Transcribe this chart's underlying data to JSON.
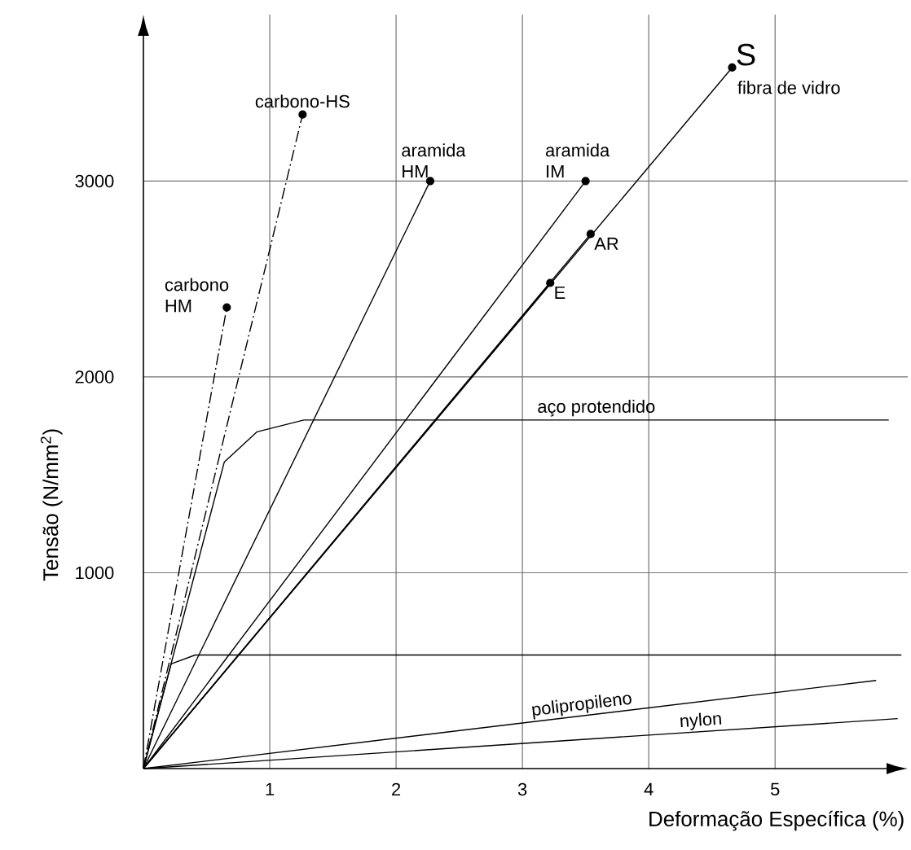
{
  "chart_data": {
    "type": "line",
    "xlabel": "Deformação Específica (%)",
    "ylabel": "Tensão (N/mm$^{2}$)",
    "xlim": [
      0,
      6.05
    ],
    "ylim": [
      0,
      3850
    ],
    "xticks": [
      1,
      2,
      3,
      4,
      5
    ],
    "yticks": [
      1000,
      2000,
      3000
    ],
    "grid": true,
    "annotations": [
      "fibra de vidro"
    ],
    "series": [
      {
        "name": "carbono-HS",
        "color": "#000000",
        "line_style": "dashdot",
        "marker": "circle",
        "x": [
          0,
          1.26
        ],
        "values": [
          0,
          3340
        ]
      },
      {
        "name": "carbono HM",
        "color": "#000000",
        "line_style": "dashdot",
        "marker": "circle",
        "x": [
          0,
          0.66
        ],
        "values": [
          0,
          2355
        ]
      },
      {
        "name": "aramida HM",
        "color": "#000000",
        "line_style": "solid",
        "marker": "circle",
        "x": [
          0,
          2.27
        ],
        "values": [
          0,
          3000
        ]
      },
      {
        "name": "aramida IM",
        "color": "#000000",
        "line_style": "solid",
        "marker": "circle",
        "x": [
          0,
          3.5
        ],
        "values": [
          0,
          3000
        ]
      },
      {
        "name": "S",
        "color": "#000000",
        "line_style": "solid",
        "marker": "circle",
        "x": [
          0,
          4.66
        ],
        "values": [
          0,
          3580
        ]
      },
      {
        "name": "AR",
        "color": "#000000",
        "line_style": "solid",
        "marker": "circle",
        "x": [
          0,
          3.54
        ],
        "values": [
          0,
          2730
        ]
      },
      {
        "name": "E",
        "color": "#000000",
        "line_style": "solid",
        "marker": "circle",
        "x": [
          0,
          3.22
        ],
        "values": [
          0,
          2480
        ]
      },
      {
        "name": "aço protendido",
        "color": "#000000",
        "line_style": "solid",
        "marker": "none",
        "x": [
          0,
          0.64,
          0.9,
          1.27,
          5.9
        ],
        "values": [
          0,
          1565,
          1720,
          1780,
          1780
        ]
      },
      {
        "color": "#000000",
        "line_style": "solid",
        "marker": "none",
        "x": [
          0,
          0.22,
          0.41,
          6.0
        ],
        "values": [
          0,
          535,
          580,
          580
        ]
      },
      {
        "name": "polipropileno",
        "color": "#000000",
        "line_style": "solid",
        "marker": "none",
        "x": [
          0,
          5.8
        ],
        "values": [
          0,
          450
        ]
      },
      {
        "name": "nylon",
        "color": "#000000",
        "line_style": "solid",
        "marker": "none",
        "x": [
          0,
          5.97
        ],
        "values": [
          0,
          255
        ]
      }
    ]
  }
}
